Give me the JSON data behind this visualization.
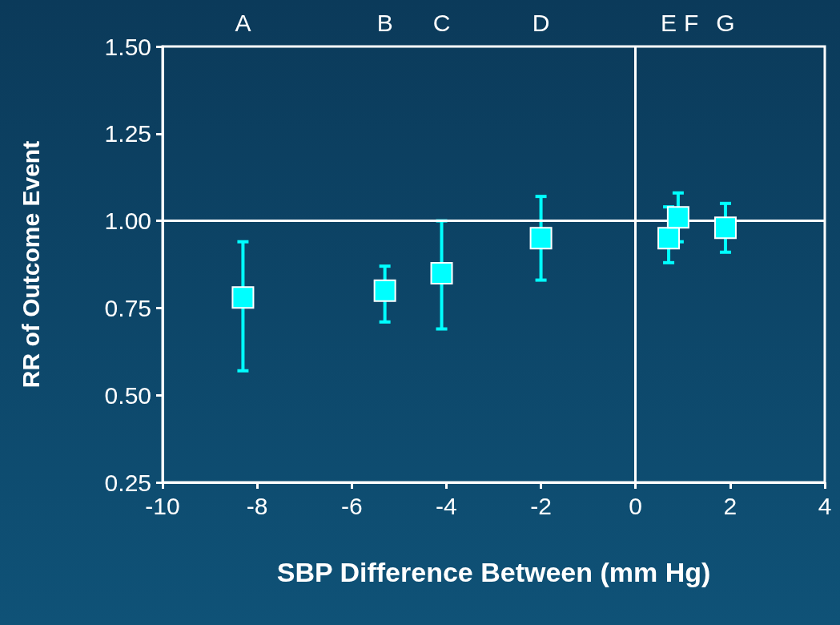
{
  "chart_data": {
    "type": "scatter",
    "xlabel": "SBP Difference Between (mm Hg)",
    "ylabel": "RR of Outcome Event",
    "x": [
      -8.3,
      -5.3,
      -4.1,
      -2.0,
      0.7,
      0.9,
      1.9
    ],
    "values": [
      0.78,
      0.8,
      0.85,
      0.95,
      0.95,
      1.01,
      0.98
    ],
    "errors": [
      [
        0.57,
        0.94
      ],
      [
        0.71,
        0.87
      ],
      [
        0.69,
        1.0
      ],
      [
        0.83,
        1.07
      ],
      [
        0.88,
        1.04
      ],
      [
        0.94,
        1.08
      ],
      [
        0.91,
        1.05
      ]
    ],
    "color": "#00ffff",
    "marker": "square",
    "grid": false,
    "xlim": [
      -10,
      4
    ],
    "xticks": [
      -10,
      -8,
      -6,
      -4,
      -2,
      0,
      2,
      4
    ],
    "ylim": [
      0.25,
      1.5
    ],
    "yticks": [
      {
        "value": 0.25,
        "label": "0.25"
      },
      {
        "value": 0.5,
        "label": "0.50"
      },
      {
        "value": 0.75,
        "label": "0.75"
      },
      {
        "value": 1,
        "label": "1.00"
      },
      {
        "value": 1.25,
        "label": "1.25"
      },
      {
        "value": 1.5,
        "label": "1.50"
      }
    ],
    "ref_lines": [
      {
        "axis": "y",
        "value": 1,
        "color": "#ffffff"
      },
      {
        "axis": "x",
        "value": 0,
        "color": "#ffffff"
      }
    ],
    "annotations": [
      "A",
      "B",
      "C",
      "D",
      "E",
      "F",
      "G"
    ]
  }
}
